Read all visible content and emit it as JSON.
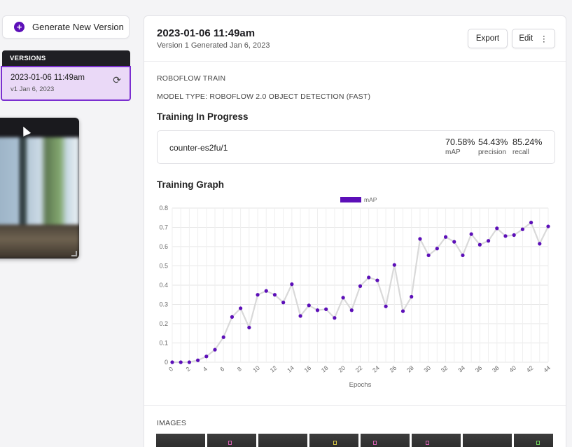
{
  "sidebar": {
    "generate_button": "Generate New Version",
    "versions_header": "VERSIONS",
    "version": {
      "title": "2023-01-06 11:49am",
      "subtitle": "v1 Jan 6, 2023"
    }
  },
  "header": {
    "title": "2023-01-06 11:49am",
    "subtitle": "Version 1 Generated Jan 6, 2023",
    "export_label": "Export",
    "edit_label": "Edit",
    "edit_more": "⋮"
  },
  "details": {
    "train_label": "ROBOFLOW TRAIN",
    "model_type": "MODEL TYPE: ROBOFLOW 2.0 OBJECT DETECTION (FAST)",
    "progress_title": "Training In Progress",
    "model_id": "counter-es2fu/1",
    "metrics": [
      {
        "value": "70.58%",
        "label": "mAP"
      },
      {
        "value": "54.43%",
        "label": "precision"
      },
      {
        "value": "85.24%",
        "label": "recall"
      }
    ]
  },
  "graph_title": "Training Graph",
  "images_label": "IMAGES",
  "colors": {
    "accent": "#5c0fb8",
    "line": "#d9d9d9",
    "selected_bg": "#ead9f7"
  },
  "chart_data": {
    "type": "line",
    "xlabel": "Epochs",
    "ylabel": "",
    "ylim": [
      0,
      0.8
    ],
    "xlim": [
      0,
      44
    ],
    "yticks": [
      "0",
      "0.1",
      "0.2",
      "0.3",
      "0.4",
      "0.5",
      "0.6",
      "0.7",
      "0.8"
    ],
    "xticks": [
      "0",
      "2",
      "4",
      "6",
      "8",
      "10",
      "12",
      "14",
      "16",
      "18",
      "20",
      "22",
      "24",
      "26",
      "28",
      "30",
      "32",
      "34",
      "36",
      "38",
      "40",
      "42",
      "44"
    ],
    "legend": "top-center",
    "grid": true,
    "series": [
      {
        "name": "mAP",
        "x": [
          0,
          1,
          2,
          3,
          4,
          5,
          6,
          7,
          8,
          9,
          10,
          11,
          12,
          13,
          14,
          15,
          16,
          17,
          18,
          19,
          20,
          21,
          22,
          23,
          24,
          25,
          26,
          27,
          28,
          29,
          30,
          31,
          32,
          33,
          34,
          35,
          36,
          37,
          38,
          39,
          40,
          41,
          42,
          43,
          44
        ],
        "values": [
          0,
          0,
          0,
          0.01,
          0.03,
          0.065,
          0.13,
          0.235,
          0.28,
          0.18,
          0.35,
          0.37,
          0.35,
          0.31,
          0.405,
          0.24,
          0.295,
          0.27,
          0.275,
          0.23,
          0.335,
          0.27,
          0.395,
          0.44,
          0.425,
          0.29,
          0.505,
          0.265,
          0.34,
          0.64,
          0.555,
          0.59,
          0.65,
          0.625,
          0.555,
          0.665,
          0.61,
          0.63,
          0.695,
          0.655,
          0.66,
          0.69,
          0.725,
          0.615,
          0.705
        ]
      }
    ]
  }
}
